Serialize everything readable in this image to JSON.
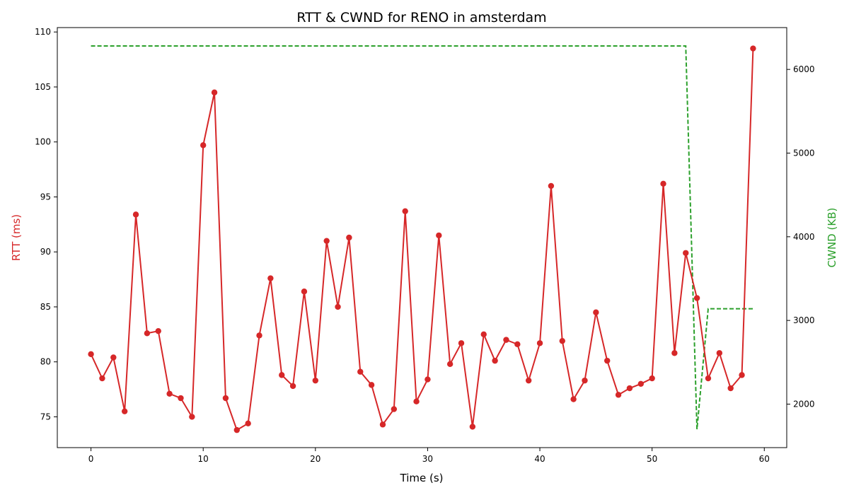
{
  "chart_data": {
    "type": "line",
    "title": "RTT & CWND for RENO in amsterdam",
    "xlabel": "Time (s)",
    "ylabel": "RTT (ms)",
    "y2label": "CWND (KB)",
    "xlim": [
      -3,
      62
    ],
    "ylim": [
      72.2,
      110.4
    ],
    "y2lim": [
      1480,
      6500
    ],
    "x_ticks": [
      0,
      10,
      20,
      30,
      40,
      50,
      60
    ],
    "y_ticks": [
      75,
      80,
      85,
      90,
      95,
      100,
      105,
      110
    ],
    "y2_ticks": [
      2000,
      3000,
      4000,
      5000,
      6000
    ],
    "grid": false,
    "colors": {
      "rtt": "#d62728",
      "cwnd": "#2ca02c"
    },
    "series": [
      {
        "axis": "left",
        "style": "solid-markers",
        "x": [
          0,
          1,
          2,
          3,
          4,
          5,
          6,
          7,
          8,
          9,
          10,
          11,
          12,
          13,
          14,
          15,
          16,
          17,
          18,
          19,
          20,
          21,
          22,
          23,
          24,
          25,
          26,
          27,
          28,
          29,
          30,
          31,
          32,
          33,
          34,
          35,
          36,
          37,
          38,
          39,
          40,
          41,
          42,
          43,
          44,
          45,
          46,
          47,
          48,
          49,
          50,
          51,
          52,
          53,
          54,
          55,
          56,
          57,
          58,
          59
        ],
        "values": [
          80.7,
          78.5,
          80.4,
          75.5,
          93.4,
          82.6,
          82.8,
          77.1,
          76.7,
          75.0,
          99.7,
          104.5,
          76.7,
          73.8,
          74.4,
          82.4,
          87.6,
          78.8,
          77.8,
          86.4,
          78.3,
          91.0,
          85.0,
          91.3,
          79.1,
          77.9,
          74.3,
          75.7,
          93.7,
          76.4,
          78.4,
          91.5,
          79.8,
          81.7,
          74.1,
          82.5,
          80.1,
          82.0,
          81.6,
          78.3,
          81.7,
          96.0,
          81.9,
          76.6,
          78.3,
          84.5,
          80.1,
          77.0,
          77.6,
          78.0,
          78.5,
          96.2,
          80.8,
          89.9,
          85.8,
          78.5,
          80.8,
          77.6,
          78.8,
          108.5
        ]
      },
      {
        "axis": "right",
        "style": "dashed",
        "x": [
          0,
          1,
          2,
          3,
          4,
          5,
          6,
          7,
          8,
          9,
          10,
          11,
          12,
          13,
          14,
          15,
          16,
          17,
          18,
          19,
          20,
          21,
          22,
          23,
          24,
          25,
          26,
          27,
          28,
          29,
          30,
          31,
          32,
          33,
          34,
          35,
          36,
          37,
          38,
          39,
          40,
          41,
          42,
          43,
          44,
          45,
          46,
          47,
          48,
          49,
          50,
          51,
          52,
          53,
          54,
          55,
          56,
          57,
          58,
          59
        ],
        "values": [
          6280,
          6280,
          6280,
          6280,
          6280,
          6280,
          6280,
          6280,
          6280,
          6280,
          6280,
          6280,
          6280,
          6280,
          6280,
          6280,
          6280,
          6280,
          6280,
          6280,
          6280,
          6280,
          6280,
          6280,
          6280,
          6280,
          6280,
          6280,
          6280,
          6280,
          6280,
          6280,
          6280,
          6280,
          6280,
          6280,
          6280,
          6280,
          6280,
          6280,
          6280,
          6280,
          6280,
          6280,
          6280,
          6280,
          6280,
          6280,
          6280,
          6280,
          6280,
          6280,
          6280,
          6280,
          1700,
          3140,
          3140,
          3140,
          3140,
          3140
        ]
      }
    ]
  }
}
